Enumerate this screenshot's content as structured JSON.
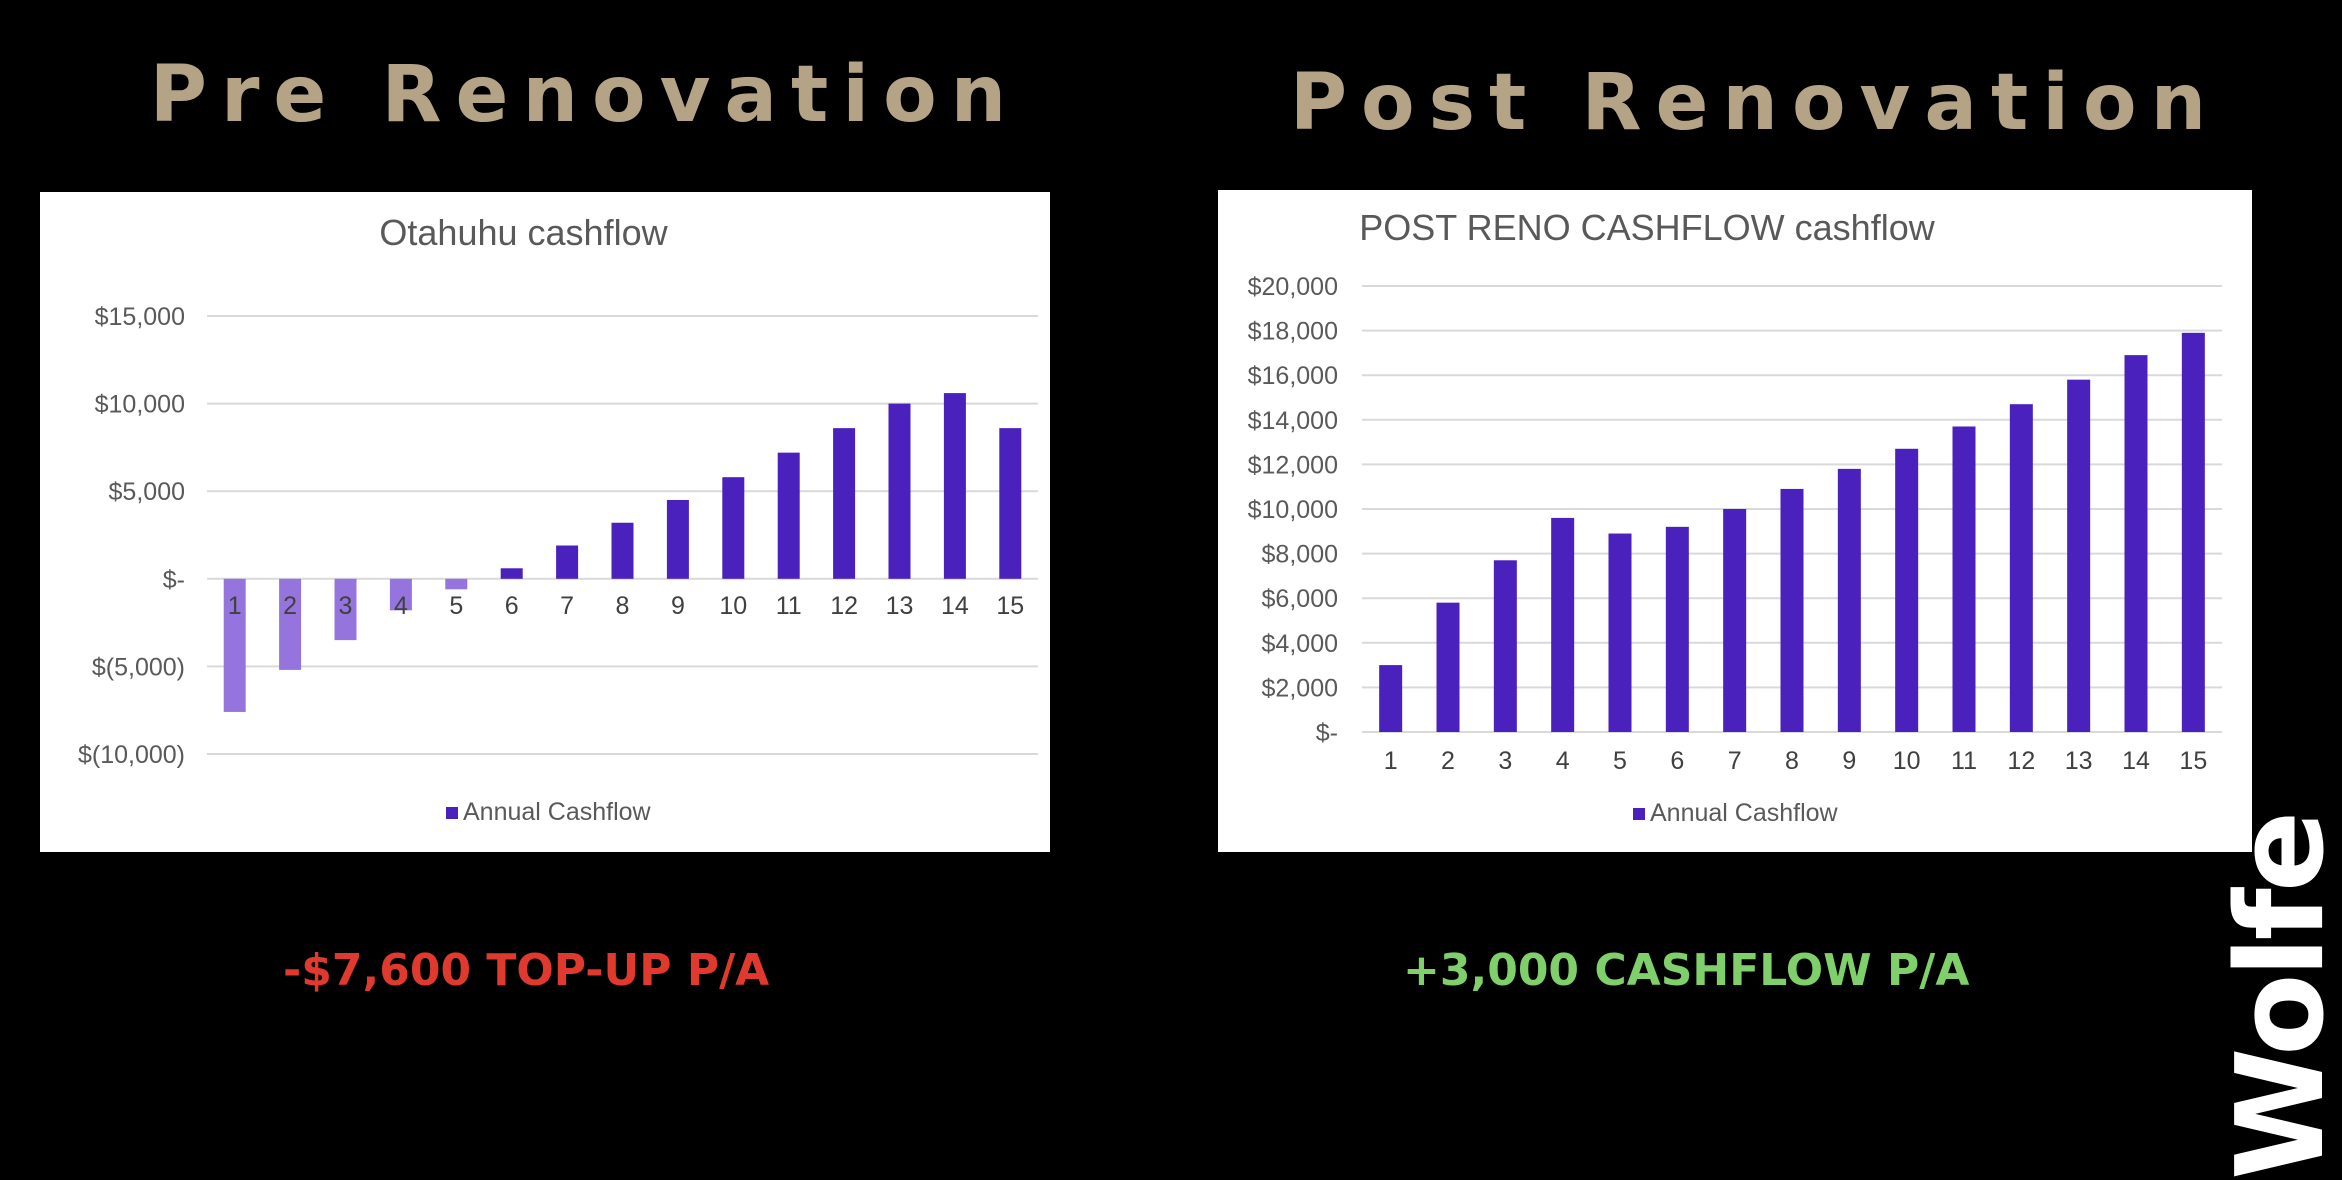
{
  "headings": {
    "left": "Pre Renovation",
    "right": "Post Renovation"
  },
  "callouts": {
    "left": "-$7,600 TOP-UP P/A",
    "right": "+3,000  CASHFLOW P/A"
  },
  "logo": "Wolfe",
  "colors": {
    "background": "#000000",
    "heading": "#b5a386",
    "bar": "#4b21bd",
    "bar_negative": "#9575dd",
    "callout_negative": "#e03a2f",
    "callout_positive": "#7fcf6a"
  },
  "chart_data": [
    {
      "type": "bar",
      "title": "Otahuhu cashflow",
      "categories": [
        "1",
        "2",
        "3",
        "4",
        "5",
        "6",
        "7",
        "8",
        "9",
        "10",
        "11",
        "12",
        "13",
        "14",
        "15"
      ],
      "series": [
        {
          "name": "Annual Cashflow",
          "values": [
            -7600,
            -5200,
            -3500,
            -1800,
            -600,
            600,
            1900,
            3200,
            4500,
            5800,
            7200,
            8600,
            10000,
            10600,
            8600
          ]
        }
      ],
      "ylim": [
        -10000,
        15000
      ],
      "yticks": [
        15000,
        10000,
        5000,
        0,
        -5000,
        -10000
      ],
      "ytick_labels": [
        "$15,000",
        "$10,000",
        "$5,000",
        "$-",
        "$(5,000)",
        "$(10,000)"
      ],
      "legend": "bottom",
      "grid": true
    },
    {
      "type": "bar",
      "title": "POST RENO CASHFLOW cashflow",
      "categories": [
        "1",
        "2",
        "3",
        "4",
        "5",
        "6",
        "7",
        "8",
        "9",
        "10",
        "11",
        "12",
        "13",
        "14",
        "15"
      ],
      "series": [
        {
          "name": "Annual Cashflow",
          "values": [
            3000,
            5800,
            7700,
            9600,
            8900,
            9200,
            10000,
            10900,
            11800,
            12700,
            13700,
            14700,
            15800,
            16900,
            17900
          ]
        }
      ],
      "ylim": [
        0,
        20000
      ],
      "yticks": [
        20000,
        18000,
        16000,
        14000,
        12000,
        10000,
        8000,
        6000,
        4000,
        2000,
        0
      ],
      "ytick_labels": [
        "$20,000",
        "$18,000",
        "$16,000",
        "$14,000",
        "$12,000",
        "$10,000",
        "$8,000",
        "$6,000",
        "$4,000",
        "$2,000",
        "$-"
      ],
      "legend": "bottom",
      "grid": true
    }
  ]
}
